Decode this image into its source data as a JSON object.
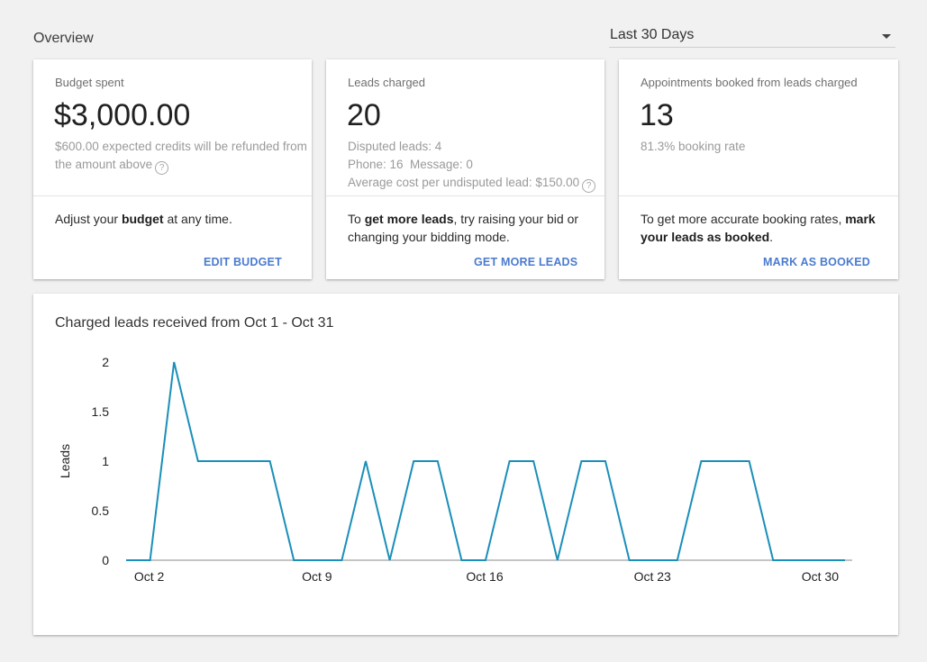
{
  "header": {
    "title": "Overview"
  },
  "date_range": {
    "selected": "Last 30 Days"
  },
  "cards": [
    {
      "label": "Budget spent",
      "value": "$3,000.00",
      "sub_lines": [
        "$600.00 expected credits will be refunded from",
        "the amount above"
      ],
      "body_pre": "Adjust your ",
      "body_bold": "budget",
      "body_post": " at any time.",
      "action": "EDIT BUDGET"
    },
    {
      "label": "Leads charged",
      "value": "20",
      "sub_lines": [
        "Disputed leads: 4",
        "Phone: 16  Message: 0",
        "Average cost per undisputed lead: $150.00"
      ],
      "body_pre": "To ",
      "body_bold": "get more leads",
      "body_post": ", try raising your bid or changing your bidding mode.",
      "action": "GET MORE LEADS"
    },
    {
      "label": "Appointments booked from leads charged",
      "value": "13",
      "sub_lines": [
        "81.3% booking rate"
      ],
      "body_pre": "To get more accurate booking rates, ",
      "body_bold": "mark your leads as booked",
      "body_post": ".",
      "action": "MARK AS BOOKED"
    }
  ],
  "chart_data": {
    "type": "line",
    "title": "Charged leads received from Oct 1 - Oct 31",
    "xlabel": "",
    "ylabel": "Leads",
    "x_tick_labels": [
      "Oct 2",
      "Oct 9",
      "Oct 16",
      "Oct 23",
      "Oct 30"
    ],
    "x_tick_days": [
      2,
      9,
      16,
      23,
      30
    ],
    "y_ticks": [
      "0",
      "0.5",
      "1",
      "1.5",
      "2"
    ],
    "ylim": [
      0,
      2
    ],
    "xlim": [
      1,
      31
    ],
    "grid": false,
    "legend": "none",
    "color": "#1a8fb9",
    "series": [
      {
        "x": [
          1,
          2,
          3,
          4,
          5,
          6,
          7,
          8,
          9,
          10,
          11,
          12,
          13,
          14,
          15,
          16,
          17,
          18,
          19,
          20,
          21,
          22,
          23,
          24,
          25,
          26,
          27,
          28,
          29,
          30,
          31
        ],
        "values": [
          0,
          0,
          2,
          1,
          1,
          1,
          1,
          0,
          0,
          0,
          1,
          0,
          1,
          1,
          0,
          0,
          1,
          1,
          0,
          1,
          1,
          0,
          0,
          0,
          1,
          1,
          1,
          0,
          0,
          0,
          0
        ]
      }
    ]
  }
}
